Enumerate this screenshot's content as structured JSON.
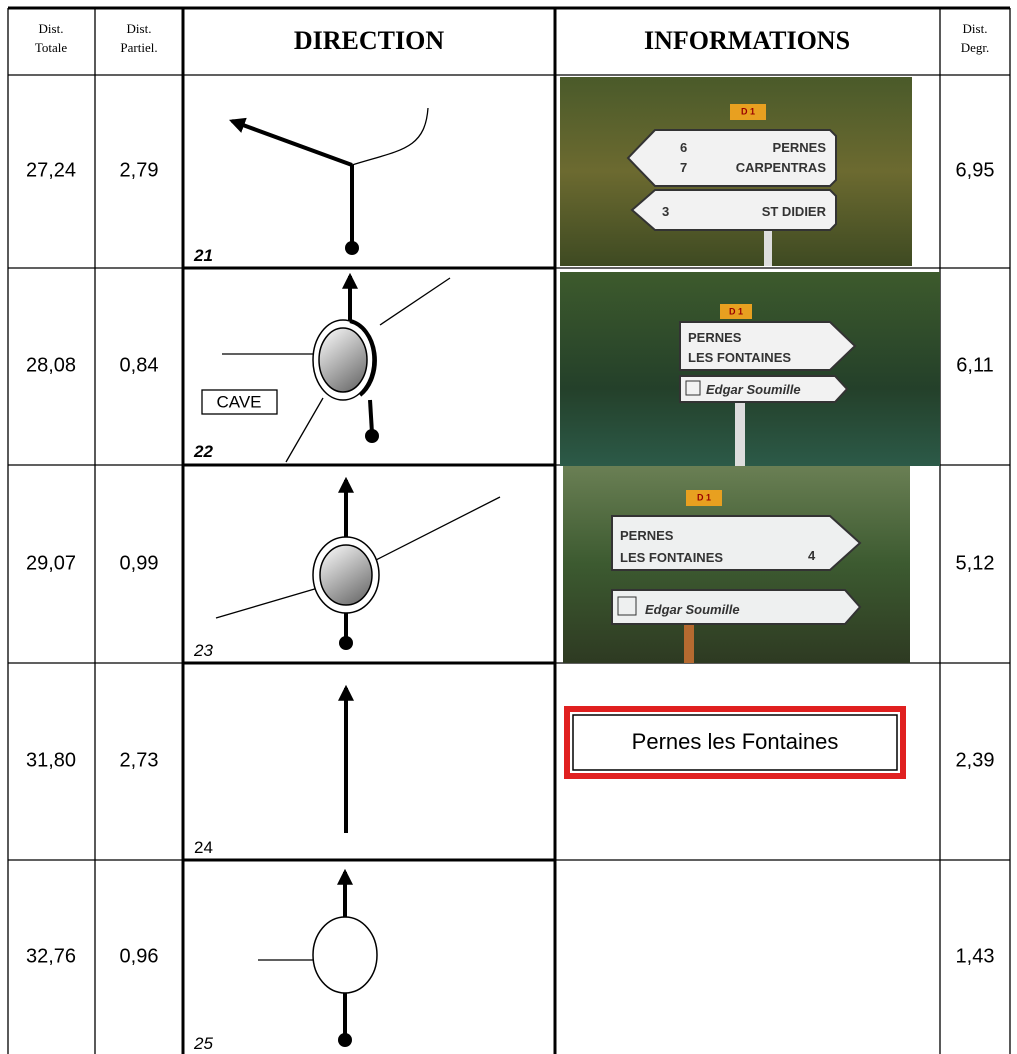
{
  "header": {
    "dist_totale": [
      "Dist.",
      "Totale"
    ],
    "dist_partiel": [
      "Dist.",
      "Partiel."
    ],
    "direction": "DIRECTION",
    "informations": "INFORMATIONS",
    "dist_degr": [
      "Dist.",
      "Degr."
    ]
  },
  "rows": [
    {
      "dist_totale": "27,24",
      "dist_partiel": "2,79",
      "step": "21",
      "dist_degr": "6,95",
      "info": {
        "road": "D 1",
        "signs": [
          {
            "numbers": [
              "6",
              "7"
            ],
            "lines": [
              "PERNES",
              "CARPENTRAS"
            ]
          },
          {
            "numbers": [
              "3"
            ],
            "lines": [
              "ST DIDIER"
            ]
          }
        ]
      }
    },
    {
      "dist_totale": "28,08",
      "dist_partiel": "0,84",
      "step": "22",
      "label": "CAVE",
      "dist_degr": "6,11",
      "info": {
        "road": "D 1",
        "signs": [
          {
            "lines": [
              "PERNES",
              "LES FONTAINES"
            ]
          },
          {
            "lines": [
              "Edgar Soumille"
            ]
          }
        ]
      }
    },
    {
      "dist_totale": "29,07",
      "dist_partiel": "0,99",
      "step": "23",
      "dist_degr": "5,12",
      "info": {
        "road": "D 1",
        "signs": [
          {
            "numbers": [
              "4"
            ],
            "lines": [
              "PERNES",
              "LES FONTAINES"
            ]
          },
          {
            "lines": [
              "Edgar Soumille"
            ]
          }
        ]
      }
    },
    {
      "dist_totale": "31,80",
      "dist_partiel": "2,73",
      "step": "24",
      "dist_degr": "2,39",
      "info": {
        "box": "Pernes les Fontaines"
      }
    },
    {
      "dist_totale": "32,76",
      "dist_partiel": "0,96",
      "step": "25",
      "dist_degr": "1,43"
    }
  ]
}
